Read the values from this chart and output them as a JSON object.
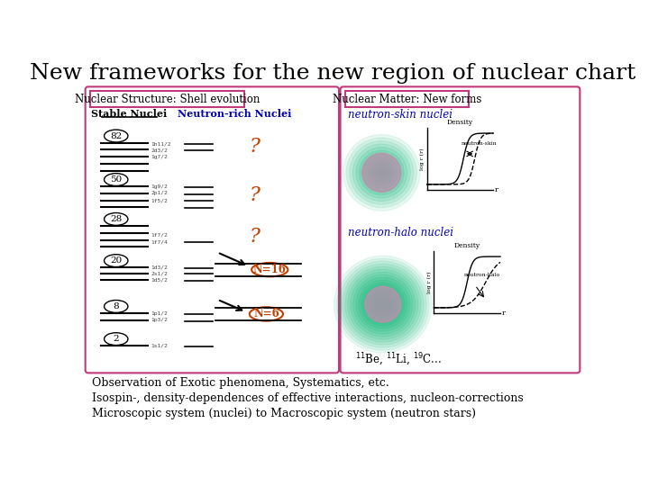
{
  "title": "New frameworks for the new region of nuclear chart",
  "title_fontsize": 18,
  "bg_color": "#ffffff",
  "left_box_title": "Nuclear Structure: Shell evolution",
  "right_box_title": "Nuclear Matter: New forms",
  "stable_label": "Stable Nuclei",
  "neutron_rich_label": "Neutron-rich Nuclei",
  "magic_numbers": [
    "82",
    "50",
    "28",
    "20",
    "8",
    "2"
  ],
  "n16_label": "N=16",
  "n6_label": "N=6",
  "neutron_skin_label": "neutron-skin nuclei",
  "neutron_halo_label": "neutron-halo nuclei",
  "density_label": "Density",
  "neutron_skin_text": "neutron-skin",
  "neutron_halo_text": "neutron-halo",
  "bottom_text1": "Observation of Exotic phenomena, Systematics, etc.",
  "bottom_text2": "Isospin-, density-dependences of effective interactions, nucleon-corrections",
  "bottom_text3": "Microscopic system (nuclei) to Macroscopic system (neutron stars)",
  "box_color": "#c0397a",
  "question_color": "#c04000",
  "n_label_color": "#c04000",
  "neutron_label_color": "#0000bb",
  "nucleus_outer_color": "#10b878",
  "nucleus_core_color": "#c090b0"
}
